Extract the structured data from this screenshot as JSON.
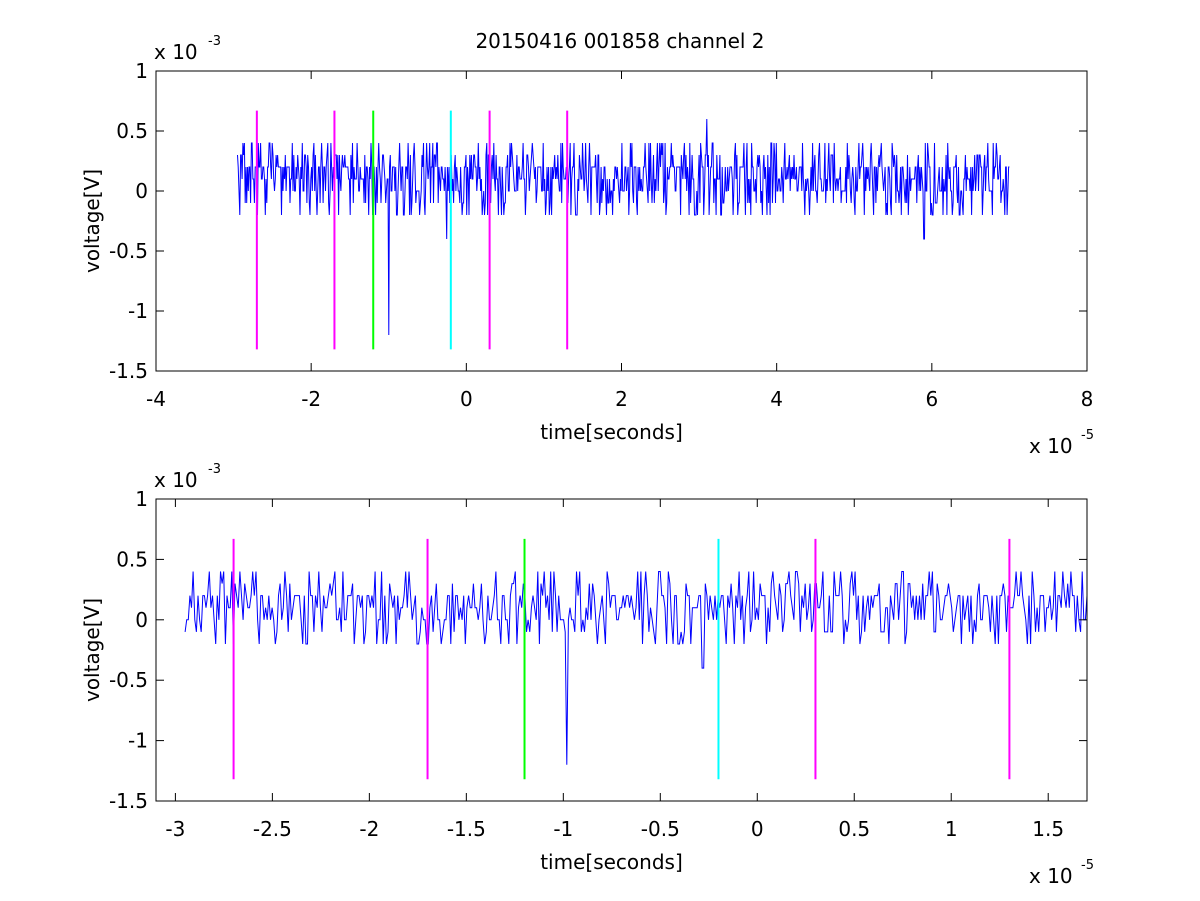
{
  "title": "20150416 001858 channel 2",
  "chart_data": [
    {
      "type": "line",
      "title": "20150416 001858 channel 2",
      "xlabel": "time[seconds]",
      "ylabel": "voltage[V]",
      "x_multiplier": "x 10",
      "x_multiplier_exp": "-5",
      "y_multiplier": "x 10",
      "y_multiplier_exp": "-3",
      "xlim": [
        -4,
        8
      ],
      "ylim": [
        -1.5,
        1
      ],
      "x_ticks": [
        -4,
        -2,
        0,
        2,
        4,
        6,
        8
      ],
      "x_tick_labels": [
        "-4",
        "-2",
        "0",
        "2",
        "4",
        "6",
        "8"
      ],
      "y_ticks": [
        -1.5,
        -1,
        -0.5,
        0,
        0.5,
        1
      ],
      "y_tick_labels": [
        "-1.5",
        "-1",
        "-0.5",
        "0",
        "0.5",
        "1"
      ],
      "grid": false,
      "signal_color": "#0000ff",
      "signal_x_range": [
        -2.95,
        7.0
      ],
      "signal_spikes": [
        [
          -1.3,
          -0.1
        ],
        [
          -1.0,
          -1.2
        ],
        [
          -0.25,
          -0.4
        ],
        [
          3.1,
          0.6
        ],
        [
          5.9,
          -0.4
        ]
      ],
      "markers": [
        {
          "x": -2.7,
          "color": "#ff00ff"
        },
        {
          "x": -1.7,
          "color": "#ff00ff"
        },
        {
          "x": -1.2,
          "color": "#00ff00"
        },
        {
          "x": -0.2,
          "color": "#00ffff"
        },
        {
          "x": 0.3,
          "color": "#ff00ff"
        },
        {
          "x": 1.3,
          "color": "#ff00ff"
        }
      ],
      "marker_range": [
        -1.32,
        0.67
      ]
    },
    {
      "type": "line",
      "xlabel": "time[seconds]",
      "ylabel": "voltage[V]",
      "x_multiplier": "x 10",
      "x_multiplier_exp": "-5",
      "y_multiplier": "x 10",
      "y_multiplier_exp": "-3",
      "xlim": [
        -3.1,
        1.7
      ],
      "ylim": [
        -1.5,
        1
      ],
      "x_ticks": [
        -3,
        -2.5,
        -2,
        -1.5,
        -1,
        -0.5,
        0,
        0.5,
        1,
        1.5
      ],
      "x_tick_labels": [
        "-3",
        "-2.5",
        "-2",
        "-1.5",
        "-1",
        "-0.5",
        "0",
        "0.5",
        "1",
        "1.5"
      ],
      "y_ticks": [
        -1.5,
        -1,
        -0.5,
        0,
        0.5,
        1
      ],
      "y_tick_labels": [
        "-1.5",
        "-1",
        "-0.5",
        "0",
        "0.5",
        "1"
      ],
      "grid": false,
      "signal_color": "#0000ff",
      "signal_x_range": [
        -2.95,
        1.7
      ],
      "signal_spikes": [
        [
          -2.7,
          -0.2
        ],
        [
          -1.7,
          -0.2
        ],
        [
          -0.98,
          -1.2
        ],
        [
          -0.28,
          -0.4
        ]
      ],
      "markers": [
        {
          "x": -2.7,
          "color": "#ff00ff"
        },
        {
          "x": -1.7,
          "color": "#ff00ff"
        },
        {
          "x": -1.2,
          "color": "#00ff00"
        },
        {
          "x": -0.2,
          "color": "#00ffff"
        },
        {
          "x": 0.3,
          "color": "#ff00ff"
        },
        {
          "x": 1.3,
          "color": "#ff00ff"
        }
      ],
      "marker_range": [
        -1.32,
        0.67
      ]
    }
  ]
}
